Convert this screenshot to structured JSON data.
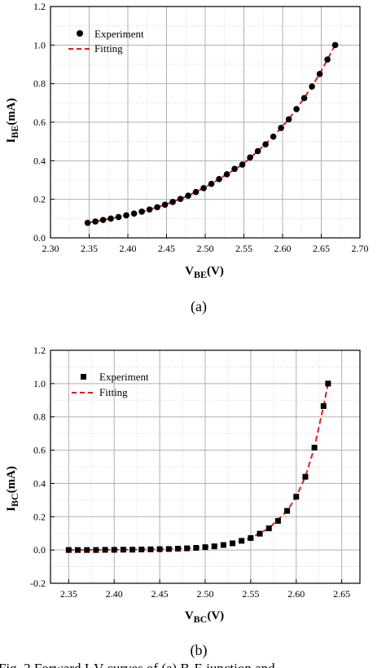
{
  "panels": [
    {
      "label": "(a)",
      "legend": {
        "experiment": "Experiment",
        "fitting": "Fitting"
      },
      "marker": "circle",
      "xlabel": {
        "main": "V",
        "sub": "BE",
        "unit": "(V)"
      },
      "ylabel": {
        "main": "I",
        "sub": "BE",
        "unit": "(mA)"
      }
    },
    {
      "label": "(b)",
      "legend": {
        "experiment": "Experiment",
        "fitting": "Fitting"
      },
      "marker": "square",
      "xlabel": {
        "main": "V",
        "sub": "BC",
        "unit": "(V)"
      },
      "ylabel": {
        "main": "I",
        "sub": "BC",
        "unit": "(mA)"
      }
    }
  ],
  "caption_fragment": "Fig. 2 Forward I-V curves of (a) B-E junction and",
  "colors": {
    "fit_line": "#e8191c",
    "marker": "#000000",
    "grid_major": "#b0b0b0",
    "grid_minor": "#cfcfcf"
  },
  "chart_data": [
    {
      "type": "scatter",
      "title": "",
      "xlabel": "VBE(V)",
      "ylabel": "IBE(mA)",
      "xlim": [
        2.3,
        2.7
      ],
      "ylim": [
        0.0,
        1.2
      ],
      "xticks": [
        "2.30",
        "2.35",
        "2.40",
        "2.45",
        "2.50",
        "2.55",
        "2.60",
        "2.65",
        "2.70"
      ],
      "yticks": [
        "0.0",
        "0.2",
        "0.4",
        "0.6",
        "0.8",
        "1.0",
        "1.2"
      ],
      "grid": true,
      "legend_position": "top-left",
      "series": [
        {
          "name": "Experiment",
          "style": "markers",
          "x": [
            2.348,
            2.358,
            2.368,
            2.378,
            2.388,
            2.398,
            2.408,
            2.418,
            2.428,
            2.438,
            2.448,
            2.458,
            2.468,
            2.478,
            2.488,
            2.498,
            2.508,
            2.518,
            2.528,
            2.538,
            2.548,
            2.558,
            2.568,
            2.578,
            2.588,
            2.598,
            2.608,
            2.618,
            2.628,
            2.638,
            2.648,
            2.658,
            2.668
          ],
          "y": [
            0.078,
            0.085,
            0.093,
            0.1,
            0.108,
            0.117,
            0.126,
            0.136,
            0.147,
            0.159,
            0.172,
            0.186,
            0.202,
            0.219,
            0.238,
            0.258,
            0.28,
            0.305,
            0.33,
            0.358,
            0.38,
            0.417,
            0.45,
            0.485,
            0.525,
            0.57,
            0.615,
            0.668,
            0.725,
            0.785,
            0.85,
            0.925,
            1.0
          ]
        },
        {
          "name": "Fitting",
          "style": "dashed-line",
          "x": [
            2.348,
            2.368,
            2.388,
            2.408,
            2.428,
            2.448,
            2.468,
            2.488,
            2.508,
            2.528,
            2.548,
            2.568,
            2.588,
            2.608,
            2.628,
            2.648,
            2.668
          ],
          "y": [
            0.078,
            0.093,
            0.108,
            0.126,
            0.147,
            0.172,
            0.202,
            0.238,
            0.28,
            0.33,
            0.38,
            0.45,
            0.525,
            0.615,
            0.725,
            0.85,
            1.0
          ]
        }
      ]
    },
    {
      "type": "scatter",
      "title": "",
      "xlabel": "VBC(V)",
      "ylabel": "IBC(mA)",
      "xlim": [
        2.33,
        2.67
      ],
      "ylim": [
        -0.2,
        1.2
      ],
      "xticks": [
        "2.35",
        "2.40",
        "2.45",
        "2.50",
        "2.55",
        "2.60",
        "2.65"
      ],
      "yticks": [
        "-0.2",
        "0.0",
        "0.2",
        "0.4",
        "0.6",
        "0.8",
        "1.0",
        "1.2"
      ],
      "grid": true,
      "legend_position": "top-left",
      "series": [
        {
          "name": "Experiment",
          "style": "markers",
          "x": [
            2.35,
            2.36,
            2.37,
            2.38,
            2.39,
            2.4,
            2.41,
            2.42,
            2.43,
            2.44,
            2.45,
            2.46,
            2.47,
            2.48,
            2.49,
            2.5,
            2.51,
            2.52,
            2.53,
            2.54,
            2.55,
            2.56,
            2.57,
            2.58,
            2.59,
            2.6,
            2.61,
            2.62,
            2.63,
            2.635
          ],
          "y": [
            0.0,
            0.0,
            0.0,
            0.0,
            0.001,
            0.001,
            0.002,
            0.002,
            0.003,
            0.004,
            0.005,
            0.006,
            0.008,
            0.01,
            0.013,
            0.017,
            0.022,
            0.03,
            0.04,
            0.055,
            0.072,
            0.098,
            0.13,
            0.175,
            0.235,
            0.32,
            0.44,
            0.615,
            0.865,
            1.0
          ]
        },
        {
          "name": "Fitting",
          "style": "dashed-line",
          "x": [
            2.35,
            2.37,
            2.39,
            2.41,
            2.43,
            2.45,
            2.47,
            2.49,
            2.51,
            2.53,
            2.55,
            2.57,
            2.59,
            2.6,
            2.61,
            2.62,
            2.63,
            2.635
          ],
          "y": [
            0.0,
            0.0,
            0.001,
            0.002,
            0.003,
            0.005,
            0.008,
            0.013,
            0.022,
            0.04,
            0.072,
            0.13,
            0.235,
            0.32,
            0.44,
            0.615,
            0.865,
            1.0
          ]
        }
      ]
    }
  ]
}
